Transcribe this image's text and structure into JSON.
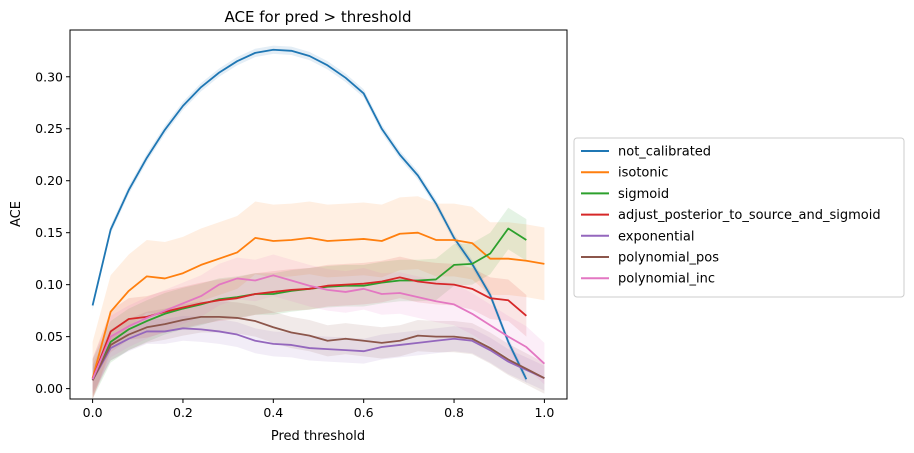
{
  "chart_data": {
    "type": "line",
    "title": "ACE for pred > threshold",
    "xlabel": "Pred threshold",
    "ylabel": "ACE",
    "xlim": [
      -0.05,
      1.05
    ],
    "ylim": [
      -0.01,
      0.345
    ],
    "xticks": [
      "0.0",
      "0.2",
      "0.4",
      "0.6",
      "0.8",
      "1.0"
    ],
    "xtick_values": [
      0.0,
      0.2,
      0.4,
      0.6,
      0.8,
      1.0
    ],
    "yticks": [
      "0.00",
      "0.05",
      "0.10",
      "0.15",
      "0.20",
      "0.25",
      "0.30"
    ],
    "ytick_values": [
      0.0,
      0.05,
      0.1,
      0.15,
      0.2,
      0.25,
      0.3
    ],
    "grid": false,
    "legend_position": "outside-right",
    "series": [
      {
        "name": "not_calibrated",
        "color": "#1f77b4",
        "x": [
          0.0,
          0.04,
          0.08,
          0.12,
          0.16,
          0.2,
          0.24,
          0.28,
          0.32,
          0.36,
          0.4,
          0.44,
          0.48,
          0.52,
          0.56,
          0.6,
          0.64,
          0.68,
          0.72,
          0.76,
          0.8,
          0.84,
          0.88,
          0.92,
          0.96
        ],
        "values": [
          0.08,
          0.153,
          0.191,
          0.222,
          0.249,
          0.272,
          0.29,
          0.304,
          0.315,
          0.323,
          0.326,
          0.325,
          0.32,
          0.311,
          0.299,
          0.284,
          0.25,
          0.225,
          0.205,
          0.178,
          0.145,
          0.12,
          0.09,
          0.045,
          0.009
        ],
        "band": 0.004
      },
      {
        "name": "isotonic",
        "color": "#ff7f0e",
        "x": [
          0.0,
          0.04,
          0.08,
          0.12,
          0.16,
          0.2,
          0.24,
          0.28,
          0.32,
          0.36,
          0.4,
          0.44,
          0.48,
          0.52,
          0.56,
          0.6,
          0.64,
          0.68,
          0.72,
          0.76,
          0.8,
          0.84,
          0.88,
          0.92,
          0.96,
          1.0
        ],
        "values": [
          0.01,
          0.074,
          0.094,
          0.108,
          0.106,
          0.111,
          0.119,
          0.125,
          0.131,
          0.145,
          0.142,
          0.143,
          0.145,
          0.142,
          0.143,
          0.144,
          0.142,
          0.149,
          0.15,
          0.143,
          0.143,
          0.14,
          0.125,
          0.125,
          0.123,
          0.12
        ],
        "band": 0.035
      },
      {
        "name": "sigmoid",
        "color": "#2ca02c",
        "x": [
          0.0,
          0.04,
          0.08,
          0.12,
          0.16,
          0.2,
          0.24,
          0.28,
          0.32,
          0.36,
          0.4,
          0.44,
          0.48,
          0.52,
          0.56,
          0.6,
          0.64,
          0.68,
          0.72,
          0.76,
          0.8,
          0.84,
          0.88,
          0.92,
          0.96
        ],
        "values": [
          0.008,
          0.045,
          0.057,
          0.065,
          0.072,
          0.077,
          0.081,
          0.086,
          0.088,
          0.091,
          0.091,
          0.094,
          0.096,
          0.098,
          0.099,
          0.099,
          0.102,
          0.104,
          0.104,
          0.105,
          0.119,
          0.12,
          0.13,
          0.154,
          0.143
        ],
        "band": 0.02
      },
      {
        "name": "adjust_posterior_to_source_and_sigmoid",
        "color": "#d62728",
        "x": [
          0.0,
          0.04,
          0.08,
          0.12,
          0.16,
          0.2,
          0.24,
          0.28,
          0.32,
          0.36,
          0.4,
          0.44,
          0.48,
          0.52,
          0.56,
          0.6,
          0.64,
          0.68,
          0.72,
          0.76,
          0.8,
          0.84,
          0.88,
          0.92,
          0.96
        ],
        "values": [
          0.009,
          0.055,
          0.067,
          0.069,
          0.074,
          0.078,
          0.082,
          0.085,
          0.087,
          0.091,
          0.093,
          0.095,
          0.096,
          0.099,
          0.1,
          0.101,
          0.103,
          0.107,
          0.103,
          0.101,
          0.1,
          0.096,
          0.087,
          0.085,
          0.07
        ],
        "band": 0.02
      },
      {
        "name": "exponential",
        "color": "#9467bd",
        "x": [
          0.0,
          0.04,
          0.08,
          0.12,
          0.16,
          0.2,
          0.24,
          0.28,
          0.32,
          0.36,
          0.4,
          0.44,
          0.48,
          0.52,
          0.56,
          0.6,
          0.64,
          0.68,
          0.72,
          0.76,
          0.8,
          0.84,
          0.88,
          0.92,
          0.96,
          1.0
        ],
        "values": [
          0.008,
          0.039,
          0.048,
          0.055,
          0.055,
          0.058,
          0.057,
          0.055,
          0.052,
          0.046,
          0.043,
          0.042,
          0.039,
          0.038,
          0.037,
          0.036,
          0.04,
          0.042,
          0.044,
          0.046,
          0.048,
          0.046,
          0.037,
          0.026,
          0.018,
          0.01
        ],
        "band": 0.012
      },
      {
        "name": "polynomial_pos",
        "color": "#8c564b",
        "x": [
          0.0,
          0.04,
          0.08,
          0.12,
          0.16,
          0.2,
          0.24,
          0.28,
          0.32,
          0.36,
          0.4,
          0.44,
          0.48,
          0.52,
          0.56,
          0.6,
          0.64,
          0.68,
          0.72,
          0.76,
          0.8,
          0.84,
          0.88,
          0.92,
          0.96,
          1.0
        ],
        "values": [
          0.008,
          0.042,
          0.052,
          0.059,
          0.062,
          0.066,
          0.069,
          0.069,
          0.068,
          0.065,
          0.059,
          0.054,
          0.051,
          0.046,
          0.048,
          0.046,
          0.044,
          0.046,
          0.051,
          0.05,
          0.05,
          0.048,
          0.039,
          0.028,
          0.019,
          0.01
        ],
        "band": 0.015
      },
      {
        "name": "polynomial_inc",
        "color": "#e377c2",
        "x": [
          0.0,
          0.04,
          0.08,
          0.12,
          0.16,
          0.2,
          0.24,
          0.28,
          0.32,
          0.36,
          0.4,
          0.44,
          0.48,
          0.52,
          0.56,
          0.6,
          0.64,
          0.68,
          0.72,
          0.76,
          0.8,
          0.84,
          0.88,
          0.92,
          0.96,
          1.0
        ],
        "values": [
          0.009,
          0.05,
          0.06,
          0.068,
          0.075,
          0.082,
          0.089,
          0.1,
          0.106,
          0.104,
          0.109,
          0.104,
          0.099,
          0.095,
          0.093,
          0.096,
          0.091,
          0.092,
          0.088,
          0.084,
          0.081,
          0.072,
          0.061,
          0.05,
          0.04,
          0.024
        ],
        "band": 0.02
      }
    ]
  }
}
